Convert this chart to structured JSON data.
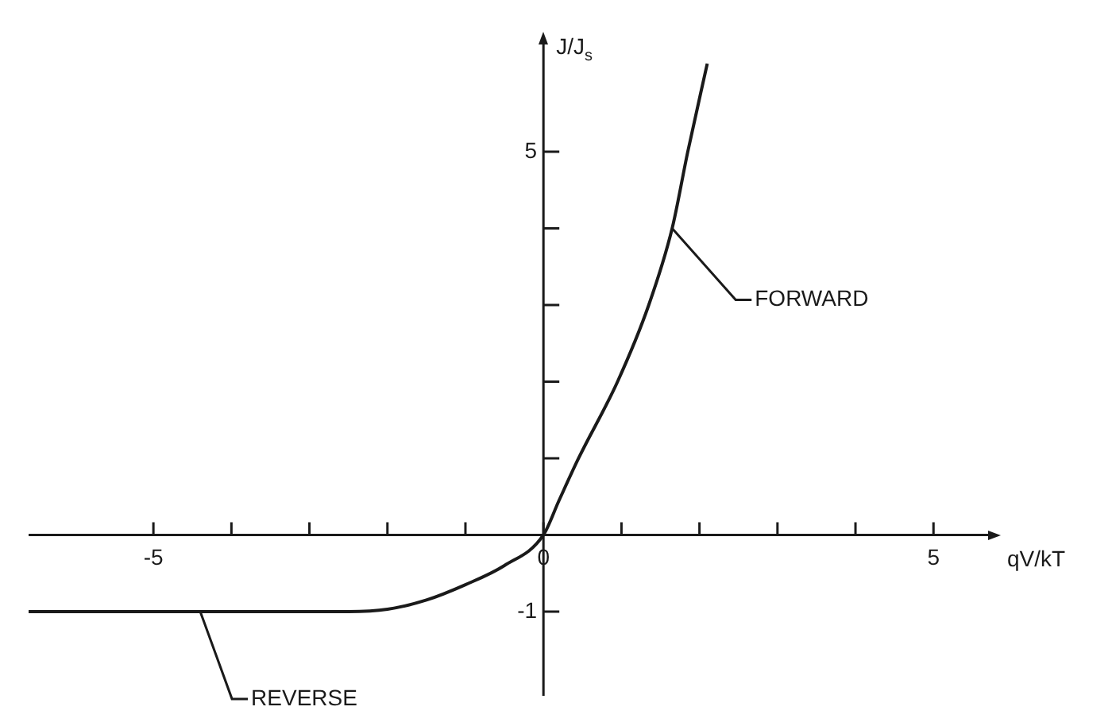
{
  "chart_data": {
    "type": "line",
    "xlabel": "qV/kT",
    "ylabel": "J/J$_{s}$",
    "x": [
      -6.6,
      -2.5,
      -2,
      -1.5,
      -1,
      -0.5,
      0,
      0.2,
      0.45,
      0.95,
      1.35,
      1.65,
      1.85,
      2.1
    ],
    "series": [
      {
        "color": "#1a1a1a",
        "values": [
          -1,
          -1,
          -0.97,
          -0.85,
          -0.65,
          -0.4,
          0,
          0.45,
          1,
          2,
          3,
          4,
          5,
          6.15
        ]
      }
    ],
    "xlim": [
      -6.6,
      5.7
    ],
    "ylim": [
      -2.1,
      6.4
    ],
    "xticks": [
      {
        "value": -5,
        "label": "-5"
      },
      {
        "value": -4,
        "label": null
      },
      {
        "value": -3,
        "label": null
      },
      {
        "value": -2,
        "label": null
      },
      {
        "value": -1,
        "label": null
      },
      {
        "value": 0,
        "label": "0"
      },
      {
        "value": 1,
        "label": null
      },
      {
        "value": 2,
        "label": null
      },
      {
        "value": 3,
        "label": null
      },
      {
        "value": 4,
        "label": null
      },
      {
        "value": 5,
        "label": "5"
      }
    ],
    "yticks": [
      {
        "value": -1,
        "label": "-1"
      },
      {
        "value": 1,
        "label": null
      },
      {
        "value": 2,
        "label": null
      },
      {
        "value": 3,
        "label": null
      },
      {
        "value": 4,
        "label": null
      },
      {
        "value": 5,
        "label": "5"
      }
    ],
    "annotations": [
      {
        "text": "FORWARD",
        "x": 1.65,
        "y": 4
      },
      {
        "text": "REVERSE",
        "x": -4.4,
        "y": -1
      }
    ],
    "grid": false,
    "legend": false,
    "marker": "none",
    "line_style": "solid"
  }
}
